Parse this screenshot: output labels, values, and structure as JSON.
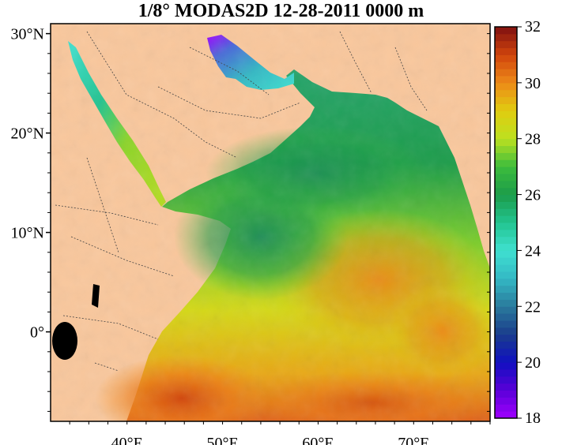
{
  "title": "1/8° MODAS2D 12-28-2011 0000 m",
  "map": {
    "lat_labels": [
      {
        "text": "30°N",
        "value": 30
      },
      {
        "text": "20°N",
        "value": 20
      },
      {
        "text": "10°N",
        "value": 10
      },
      {
        "text": "0°",
        "value": 0
      }
    ],
    "lon_labels": [
      {
        "text": "40°E",
        "value": 40
      },
      {
        "text": "50°E",
        "value": 50
      },
      {
        "text": "60°E",
        "value": 60
      },
      {
        "text": "70°E",
        "value": 70
      }
    ],
    "lon_range": [
      32,
      78
    ],
    "lat_range": [
      -9,
      31
    ],
    "land_color": "#f9c79c",
    "frame_color": "#000000"
  },
  "colorbar": {
    "min": 18,
    "max": 32,
    "tick_labels": [
      "32",
      "30",
      "28",
      "26",
      "24",
      "22",
      "20",
      "18"
    ],
    "stops": [
      {
        "value": 18,
        "color": "#a000ff"
      },
      {
        "value": 19,
        "color": "#5a00d8"
      },
      {
        "value": 20,
        "color": "#1010c0"
      },
      {
        "value": 21,
        "color": "#1a3c8c"
      },
      {
        "value": 22,
        "color": "#2a7a9c"
      },
      {
        "value": 23,
        "color": "#33b8c4"
      },
      {
        "value": 24,
        "color": "#40e0d0"
      },
      {
        "value": 25,
        "color": "#22c490"
      },
      {
        "value": 26,
        "color": "#1c9c4a"
      },
      {
        "value": 27,
        "color": "#3cbc3c"
      },
      {
        "value": 28,
        "color": "#bce020"
      },
      {
        "value": 29,
        "color": "#e0cc10"
      },
      {
        "value": 30,
        "color": "#ec8a18"
      },
      {
        "value": 31,
        "color": "#d0440c"
      },
      {
        "value": 32,
        "color": "#801010"
      }
    ]
  }
}
